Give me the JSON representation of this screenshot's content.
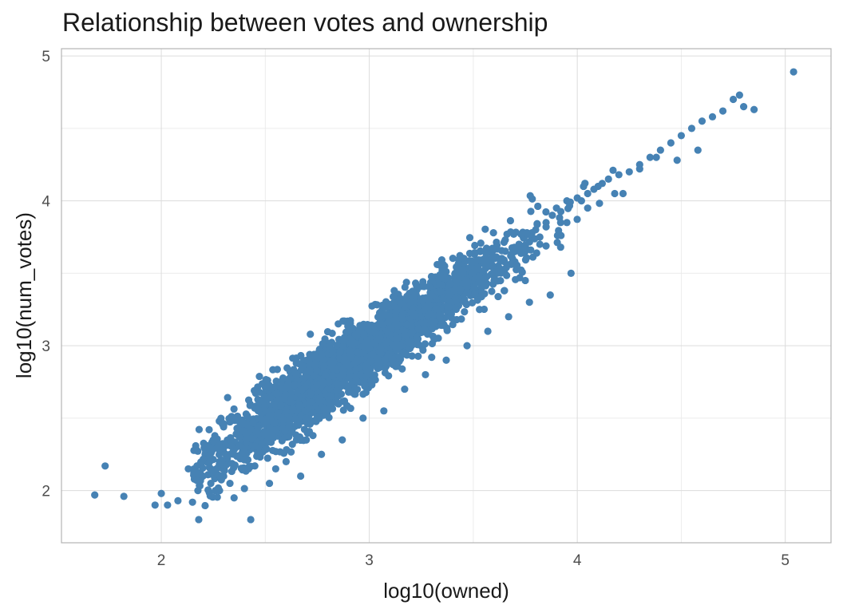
{
  "chart_data": {
    "type": "scatter",
    "title": "Relationship between votes and ownership",
    "xlabel": "log10(owned)",
    "ylabel": "log10(num_votes)",
    "xlim": [
      1.52,
      5.22
    ],
    "ylim": [
      1.64,
      5.05
    ],
    "x_ticks": [
      2,
      3,
      4,
      5
    ],
    "y_ticks": [
      2,
      3,
      4,
      5
    ],
    "x_tick_labels": [
      "2",
      "3",
      "4",
      "5"
    ],
    "y_tick_labels": [
      "2",
      "3",
      "4",
      "5"
    ],
    "grid": true,
    "point_color": "#4682b4",
    "series": [
      {
        "x": [
          1.68,
          1.73,
          1.82,
          1.97,
          2.0,
          2.03,
          2.08,
          2.13,
          2.17,
          2.18,
          2.2,
          2.23,
          2.28,
          2.3,
          2.33,
          2.36,
          2.38,
          2.43,
          2.45,
          2.5,
          2.55,
          2.58,
          2.6,
          2.65,
          2.68,
          2.7,
          2.73,
          2.75,
          2.78,
          2.8,
          2.85,
          2.88,
          2.9,
          2.92,
          2.95,
          3.0,
          3.02,
          3.05,
          3.08,
          3.1,
          3.12,
          3.15,
          3.18,
          3.2,
          3.22,
          3.25,
          3.3,
          3.35,
          3.38,
          3.4,
          3.45,
          3.48,
          3.5,
          3.55,
          3.58,
          3.6,
          3.63,
          3.65,
          3.7,
          3.72,
          3.75,
          3.78,
          3.8,
          3.85,
          3.88,
          3.9,
          3.95,
          4.0,
          4.05,
          4.1,
          4.15,
          4.2,
          4.25,
          4.3,
          4.35,
          4.4,
          4.45,
          4.5,
          4.55,
          4.6,
          4.65,
          4.7,
          4.75,
          4.78,
          4.8,
          4.85,
          5.04,
          2.15,
          2.2,
          2.25,
          2.4,
          2.47,
          2.55,
          2.62,
          2.72,
          2.82,
          2.93,
          3.03,
          3.13,
          3.23,
          3.33,
          3.43,
          3.53,
          3.62,
          3.68,
          3.82,
          3.92,
          2.28,
          2.35,
          2.42,
          2.52,
          2.6,
          2.67,
          2.77,
          2.87,
          2.97,
          3.07,
          3.17,
          3.27,
          3.37,
          3.47,
          3.57,
          3.67,
          3.77,
          3.87,
          3.97,
          2.73,
          2.85,
          3.12,
          3.23,
          3.35,
          3.45,
          3.6,
          3.72,
          3.85,
          4.02,
          4.08,
          4.12,
          4.22,
          4.3,
          4.38,
          4.48,
          4.58,
          2.5,
          2.62,
          2.8,
          2.95,
          3.05,
          3.18,
          3.28,
          3.42,
          3.53,
          3.65,
          3.75,
          3.92,
          2.88,
          3.0,
          3.1,
          3.2,
          3.3,
          3.4,
          3.5,
          3.6,
          3.7,
          3.82,
          3.95,
          4.05,
          4.18
        ],
        "y": [
          1.97,
          2.17,
          1.96,
          1.9,
          1.98,
          1.9,
          1.93,
          2.15,
          2.28,
          1.8,
          2.1,
          2.42,
          2.2,
          2.1,
          2.05,
          2.3,
          2.22,
          1.8,
          2.4,
          2.3,
          2.15,
          2.5,
          2.45,
          2.35,
          2.55,
          2.65,
          2.48,
          2.6,
          2.52,
          2.7,
          2.6,
          2.75,
          2.68,
          2.8,
          2.85,
          2.82,
          2.88,
          2.95,
          2.9,
          3.0,
          3.05,
          2.98,
          3.1,
          3.05,
          3.12,
          3.15,
          3.2,
          3.18,
          3.25,
          3.3,
          3.35,
          3.4,
          3.45,
          3.5,
          3.55,
          3.45,
          3.6,
          3.58,
          3.65,
          3.7,
          3.68,
          3.75,
          3.8,
          3.82,
          3.9,
          3.95,
          4.0,
          4.02,
          4.05,
          4.1,
          4.15,
          4.18,
          4.2,
          4.25,
          4.3,
          4.35,
          4.4,
          4.45,
          4.5,
          4.55,
          4.58,
          4.62,
          4.7,
          4.73,
          4.65,
          4.63,
          4.89,
          1.92,
          2.2,
          2.35,
          2.45,
          2.55,
          2.62,
          2.7,
          2.78,
          2.9,
          2.95,
          3.05,
          3.15,
          3.25,
          3.3,
          3.4,
          3.5,
          3.55,
          3.62,
          3.75,
          3.85,
          2.0,
          1.95,
          2.15,
          2.05,
          2.2,
          2.1,
          2.25,
          2.35,
          2.5,
          2.55,
          2.7,
          2.8,
          2.9,
          3.0,
          3.1,
          3.2,
          3.3,
          3.35,
          3.5,
          2.83,
          2.95,
          3.38,
          3.28,
          3.42,
          3.5,
          3.6,
          3.7,
          3.85,
          4.0,
          4.08,
          4.12,
          4.05,
          4.22,
          4.3,
          4.28,
          4.35,
          2.65,
          2.78,
          2.6,
          2.8,
          2.85,
          2.98,
          3.08,
          3.18,
          3.25,
          3.38,
          3.45,
          3.68,
          3.17,
          3.0,
          3.22,
          3.15,
          2.92,
          3.35,
          3.45,
          3.48,
          3.58,
          3.7,
          3.85,
          3.95,
          4.05
        ]
      }
    ]
  }
}
